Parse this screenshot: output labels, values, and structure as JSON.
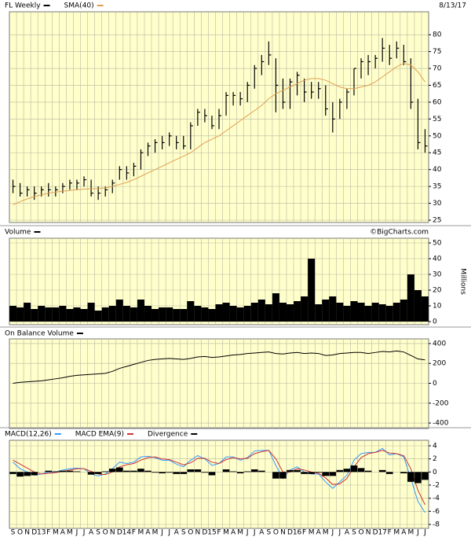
{
  "header": {
    "date": "8/13/17",
    "watermark": "©BigCharts.com"
  },
  "chart_data": [
    {
      "type": "ohlc",
      "ylim": [
        24.3,
        86.8
      ],
      "yticks": [
        25,
        30,
        35,
        40,
        45,
        50,
        55,
        60,
        65,
        70,
        75,
        80
      ],
      "grid": true,
      "series": [
        {
          "name": "FL Weekly",
          "color": "#000000",
          "high": [
            37,
            36,
            35,
            35,
            35,
            36,
            35,
            36,
            37,
            37,
            38,
            37,
            35,
            35,
            37,
            41,
            41,
            42,
            46,
            48,
            49,
            50,
            51,
            50,
            50,
            54,
            58,
            58,
            56,
            58,
            63,
            63,
            63,
            66,
            71,
            74,
            78,
            73,
            67,
            67,
            69,
            67,
            66,
            66,
            65,
            60,
            61,
            64,
            70,
            73,
            74,
            74,
            79,
            77,
            78,
            77,
            73,
            61,
            52
          ],
          "low": [
            33,
            32,
            32,
            31,
            32,
            32,
            32,
            33,
            34,
            34,
            35,
            32,
            31,
            32,
            33,
            37,
            37,
            38,
            40,
            44,
            45,
            46,
            47,
            46,
            46,
            46,
            53,
            54,
            52,
            52,
            56,
            59,
            59,
            60,
            64,
            68,
            71,
            57,
            58,
            58,
            62,
            60,
            61,
            61,
            56,
            51,
            55,
            58,
            62,
            67,
            68,
            70,
            72,
            71,
            73,
            71,
            58,
            46,
            45
          ],
          "close": [
            35,
            33,
            34,
            33,
            34,
            34,
            34,
            35,
            36,
            36,
            37,
            33,
            33,
            34,
            36,
            40,
            39,
            41,
            45,
            47,
            48,
            48,
            50,
            48,
            47,
            53,
            57,
            56,
            53,
            56,
            62,
            62,
            61,
            65,
            70,
            72,
            74,
            65,
            60,
            66,
            68,
            63,
            63,
            64,
            58,
            55,
            60,
            63,
            70,
            72,
            72,
            73,
            76,
            73,
            76,
            72,
            60,
            48,
            47
          ]
        },
        {
          "name": "SMA(40)",
          "color": "#e0a050",
          "values": [
            29.5,
            30.5,
            31.3,
            32,
            32.5,
            33,
            33.3,
            33.6,
            33.8,
            34,
            34.2,
            34.3,
            34.4,
            34.6,
            35,
            35.6,
            36.2,
            37,
            38,
            39,
            40,
            41,
            42,
            43,
            44,
            45,
            46.5,
            48,
            49,
            50,
            51.5,
            53,
            54.5,
            56,
            57.5,
            59,
            61,
            62.5,
            63.5,
            64.5,
            65.5,
            66.5,
            67,
            67,
            66.5,
            65.5,
            64.5,
            64,
            64,
            64.5,
            65,
            66,
            67.5,
            69,
            70.5,
            71.5,
            71,
            69,
            66
          ]
        }
      ]
    },
    {
      "type": "bar",
      "title": "Volume",
      "y_label": "Millions",
      "color": "#000000",
      "ylim": [
        -2,
        53
      ],
      "yticks": [
        0,
        10,
        20,
        30,
        40,
        50
      ],
      "grid": true,
      "values": [
        10,
        9,
        12,
        8,
        10,
        9,
        9,
        10,
        8,
        9,
        8,
        12,
        7,
        9,
        10,
        14,
        10,
        9,
        14,
        10,
        8,
        9,
        9,
        8,
        8,
        13,
        10,
        9,
        8,
        11,
        12,
        10,
        9,
        10,
        12,
        14,
        11,
        18,
        12,
        11,
        13,
        16,
        40,
        11,
        14,
        16,
        12,
        10,
        13,
        12,
        10,
        12,
        11,
        10,
        12,
        14,
        30,
        20,
        16
      ]
    },
    {
      "type": "line",
      "title": "On Balance Volume",
      "color": "#000000",
      "ylim": [
        -455,
        447
      ],
      "yticks": [
        -400,
        -200,
        0,
        200,
        400
      ],
      "grid": true,
      "values": [
        0,
        10,
        15,
        20,
        25,
        35,
        45,
        55,
        70,
        80,
        85,
        90,
        95,
        100,
        120,
        150,
        170,
        190,
        210,
        230,
        240,
        245,
        250,
        245,
        240,
        250,
        265,
        270,
        260,
        265,
        275,
        285,
        290,
        300,
        305,
        310,
        315,
        300,
        295,
        305,
        310,
        300,
        305,
        300,
        280,
        285,
        300,
        305,
        310,
        310,
        300,
        310,
        320,
        315,
        325,
        315,
        280,
        245,
        235
      ]
    },
    {
      "type": "combo",
      "ylim": [
        -8.6,
        4.84
      ],
      "yticks": [
        -8,
        -6,
        -4,
        -2,
        0,
        2,
        4
      ],
      "grid": true,
      "categories": [
        "S",
        "O",
        "N",
        "D",
        "13",
        "F",
        "M",
        "A",
        "M",
        "J",
        "J",
        "A",
        "S",
        "O",
        "N",
        "D",
        "14",
        "F",
        "M",
        "A",
        "M",
        "J",
        "J",
        "A",
        "S",
        "O",
        "N",
        "D",
        "15",
        "F",
        "M",
        "A",
        "M",
        "J",
        "J",
        "A",
        "S",
        "O",
        "N",
        "D",
        "16",
        "F",
        "M",
        "A",
        "M",
        "J",
        "J",
        "A",
        "S",
        "O",
        "N",
        "D",
        "17",
        "F",
        "M",
        "A",
        "M",
        "J",
        "J"
      ],
      "series": [
        {
          "name": "MACD(12,26)",
          "type": "line",
          "color": "#3399ff",
          "values": [
            1.5,
            0.5,
            0,
            -0.5,
            -0.3,
            0,
            0,
            0.3,
            0.5,
            0.6,
            0.5,
            -0.3,
            -0.6,
            -0.3,
            0.5,
            1.5,
            1.3,
            1.5,
            2.3,
            2.4,
            2.2,
            1.8,
            1.8,
            1.2,
            0.8,
            1.8,
            2.5,
            2.0,
            1,
            1.3,
            2.3,
            2.3,
            1.8,
            2.2,
            3.2,
            3.3,
            3.3,
            1,
            -1,
            0.3,
            0.8,
            0,
            -0.3,
            -0.3,
            -1.5,
            -2.5,
            -1.5,
            -0.5,
            1.8,
            2.8,
            3,
            3,
            3.6,
            2.6,
            2.8,
            2.3,
            -1,
            -4.5,
            -6.2
          ]
        },
        {
          "name": "MACD EMA(9)",
          "type": "line",
          "color": "#cc3333",
          "values": [
            1.8,
            1.2,
            0.6,
            0,
            -0.3,
            -0.2,
            -0.1,
            0.1,
            0.3,
            0.5,
            0.5,
            0.1,
            -0.3,
            -0.4,
            0,
            0.8,
            1.1,
            1.3,
            1.8,
            2.2,
            2.3,
            2,
            1.9,
            1.5,
            1.1,
            1.4,
            2.1,
            2.1,
            1.5,
            1.3,
            1.9,
            2.2,
            2,
            2.1,
            2.8,
            3.1,
            3.3,
            2,
            0,
            0,
            0.5,
            0.3,
            0,
            -0.2,
            -0.9,
            -1.9,
            -1.8,
            -1,
            0.8,
            2.2,
            2.8,
            3,
            3.3,
            2.9,
            2.8,
            2.5,
            0.5,
            -2.8,
            -5
          ]
        },
        {
          "name": "Divergence",
          "type": "bar",
          "color": "#000000",
          "values": [
            -0.3,
            -0.7,
            -0.6,
            -0.5,
            0,
            0.2,
            0.1,
            0.2,
            0.2,
            0.1,
            0,
            -0.4,
            -0.3,
            0.1,
            0.5,
            0.7,
            0.2,
            0.2,
            0.5,
            0.2,
            -0.1,
            -0.2,
            -0.1,
            -0.3,
            -0.3,
            0.4,
            0.4,
            -0.1,
            -0.5,
            0,
            0.4,
            0.1,
            -0.2,
            0.1,
            0.4,
            0.2,
            0,
            -1,
            -1,
            0.3,
            0.3,
            -0.3,
            -0.3,
            -0.1,
            -0.6,
            -0.6,
            0.3,
            0.5,
            1,
            0.6,
            0.2,
            0,
            0.3,
            -0.3,
            0,
            -0.2,
            -1.5,
            -1.7,
            -1.2
          ]
        }
      ]
    }
  ]
}
